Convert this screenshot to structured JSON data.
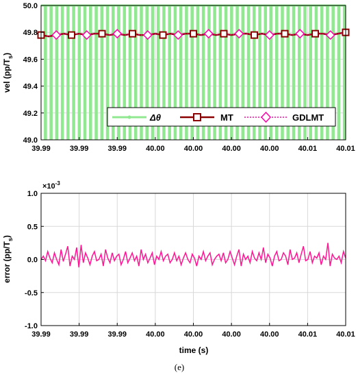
{
  "caption": "(e)",
  "chart_data": [
    {
      "type": "line",
      "ylabel": "vel (pp/T",
      "ylabel_sub": "s",
      "ylabel_close": ")",
      "ylim": [
        49.0,
        50.0
      ],
      "yticks": [
        "49.0",
        "49.2",
        "49.4",
        "49.6",
        "49.8",
        "50.0"
      ],
      "xticks": [
        "39.99",
        "39.99",
        "39.99",
        "40.00",
        "40.00",
        "40.00",
        "40.00",
        "40.01",
        "40.01"
      ],
      "xlim": [
        39.99,
        40.01
      ],
      "legend_placement": "bottom-right",
      "colors": {
        "dtheta": "#90e890",
        "mt": "#8b0000",
        "gdlmt": "#ff00aa"
      },
      "series": [
        {
          "name": "Δθ",
          "style": "pulse",
          "high": 50.0,
          "low": 49.0,
          "pulse_count": 54
        },
        {
          "name": "MT",
          "marker": "square",
          "values": [
            49.78,
            49.77,
            49.78,
            49.79,
            49.78,
            49.79,
            49.78,
            49.79,
            49.79,
            49.78,
            49.79,
            49.78,
            49.79,
            49.78,
            49.78,
            49.79,
            49.78,
            49.79,
            49.78,
            49.79,
            49.79,
            49.78,
            49.79,
            49.78,
            49.79,
            49.78,
            49.79,
            49.79,
            49.78,
            49.79,
            49.78,
            49.79,
            49.79,
            49.78,
            49.79,
            49.78,
            49.79,
            49.79,
            49.78,
            49.79,
            49.8
          ]
        },
        {
          "name": "GDLMT",
          "marker": "diamond",
          "values": [
            49.78,
            49.77,
            49.78,
            49.79,
            49.78,
            49.79,
            49.78,
            49.79,
            49.79,
            49.78,
            49.79,
            49.78,
            49.79,
            49.78,
            49.78,
            49.79,
            49.78,
            49.79,
            49.78,
            49.79,
            49.79,
            49.78,
            49.79,
            49.78,
            49.79,
            49.78,
            49.79,
            49.79,
            49.78,
            49.79,
            49.78,
            49.79,
            49.79,
            49.78,
            49.79,
            49.78,
            49.79,
            49.79,
            49.78,
            49.79,
            49.8
          ]
        }
      ]
    },
    {
      "type": "line",
      "ylabel": "error (pp/T",
      "ylabel_sub": "s",
      "ylabel_close": ")",
      "xlabel": "time (s)",
      "y_multiplier_base": "×10",
      "y_multiplier_exp": "-3",
      "ylim": [
        -1.0,
        1.0
      ],
      "yticks": [
        "-1.0",
        "-0.5",
        "0.0",
        "0.5",
        "1.0"
      ],
      "xticks": [
        "39.99",
        "39.99",
        "39.99",
        "40.00",
        "40.00",
        "40.00",
        "40.00",
        "40.01",
        "40.01"
      ],
      "xlim": [
        39.99,
        40.01
      ],
      "colors": {
        "error": "#ff1493"
      },
      "series": [
        {
          "name": "",
          "values": [
            0.0,
            0.05,
            -0.02,
            0.12,
            0.02,
            -0.05,
            0.1,
            0.0,
            -0.08,
            0.15,
            -0.03,
            0.08,
            0.2,
            -0.1,
            0.05,
            0.0,
            0.18,
            -0.12,
            0.22,
            -0.05,
            0.1,
            0.02,
            -0.08,
            0.05,
            0.12,
            -0.02,
            0.0,
            0.08,
            -0.1,
            0.15,
            0.02,
            -0.05,
            0.1,
            -0.02,
            0.05,
            0.08,
            -0.08,
            0.0,
            0.12,
            -0.05,
            0.02,
            0.1,
            -0.02,
            0.05,
            -0.1,
            0.15,
            0.0,
            0.08,
            -0.05,
            0.02,
            0.1,
            -0.08,
            0.05,
            0.0,
            0.12,
            -0.02,
            0.05,
            0.08,
            -0.05,
            0.0,
            0.1,
            -0.02,
            0.05,
            -0.08,
            0.02,
            0.1,
            0.0,
            -0.05,
            0.08,
            0.02,
            -0.1,
            0.05,
            0.0,
            0.12,
            -0.02,
            0.05,
            0.1,
            -0.08,
            0.0,
            0.05,
            0.08,
            -0.02,
            0.1,
            -0.05,
            0.0,
            0.12,
            0.02,
            -0.08,
            0.05,
            0.15,
            -0.1,
            0.08,
            0.0,
            0.05,
            -0.05,
            0.12,
            0.02,
            -0.02,
            0.1,
            0.0,
            0.18,
            -0.05,
            0.08,
            0.02,
            -0.1,
            0.05,
            0.12,
            -0.02,
            0.0,
            0.1,
            0.05,
            -0.08,
            0.15,
            0.0,
            0.02,
            0.1,
            -0.05,
            0.08,
            0.2,
            -0.02,
            0.0,
            0.12,
            -0.05,
            0.05,
            0.02,
            0.1,
            -0.08,
            0.05,
            0.0,
            0.25,
            -0.1,
            0.08,
            0.02,
            0.0,
            0.05,
            -0.05,
            0.12,
            0.02
          ]
        }
      ]
    }
  ]
}
